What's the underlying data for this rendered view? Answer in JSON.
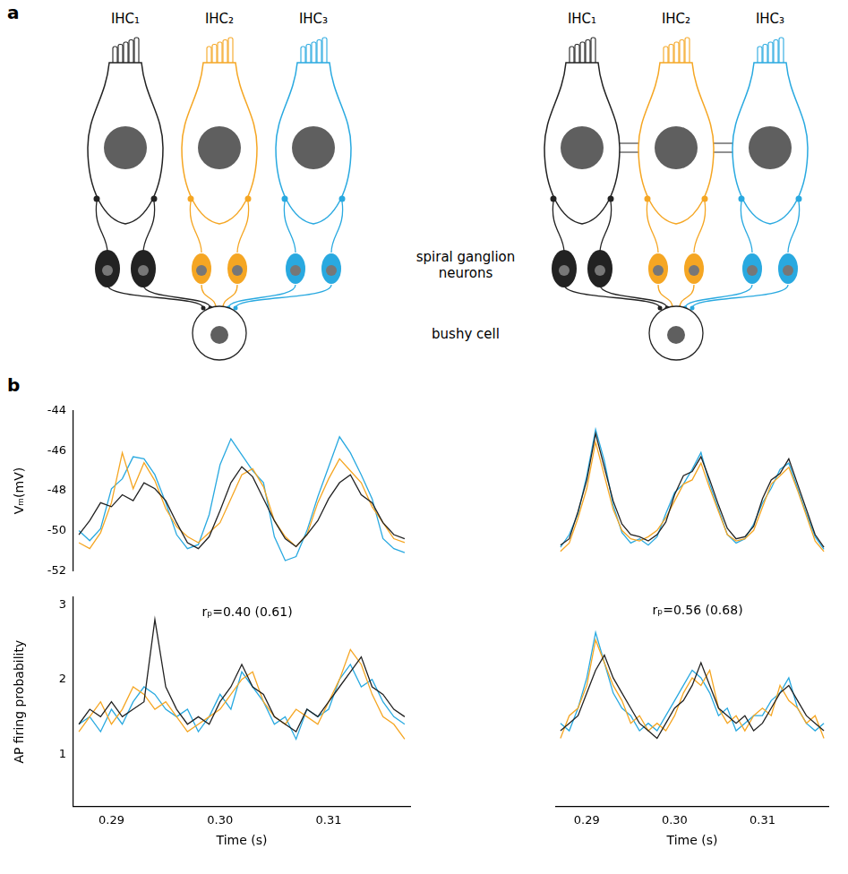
{
  "diagram": {
    "letter": "a",
    "cells": [
      "IHC₁",
      "IHC₂",
      "IHC₃"
    ],
    "colors": [
      "#222222",
      "#f5a623",
      "#29a9e0"
    ],
    "groups": [
      {
        "gap_junctions": false
      },
      {
        "gap_junctions": true
      }
    ],
    "neuron_label": [
      "spiral ganglion",
      "neurons"
    ],
    "target_label": "bushy cell"
  },
  "chart_letter": "b",
  "chart_data": [
    {
      "type": "line",
      "tick_labels": "y",
      "grid": false,
      "y_label": "Vₘ(mV)",
      "x": [
        0.287,
        0.288,
        0.289,
        0.29,
        0.291,
        0.292,
        0.293,
        0.294,
        0.295,
        0.296,
        0.297,
        0.298,
        0.299,
        0.3,
        0.301,
        0.302,
        0.303,
        0.304,
        0.305,
        0.306,
        0.307,
        0.308,
        0.309,
        0.31,
        0.311,
        0.312,
        0.313,
        0.314,
        0.315,
        0.316,
        0.317
      ],
      "xlim": [
        0.2865,
        0.3175
      ],
      "ylim": [
        -52,
        -44
      ],
      "yticks": [
        -44,
        -46,
        -48,
        -50,
        -52
      ],
      "series": [
        {
          "color": "#222222",
          "values": [
            -50.2,
            -49.5,
            -48.6,
            -48.8,
            -48.2,
            -48.5,
            -47.6,
            -47.9,
            -48.5,
            -49.6,
            -50.6,
            -50.9,
            -50.3,
            -49.0,
            -47.6,
            -46.8,
            -47.3,
            -48.4,
            -49.5,
            -50.4,
            -50.8,
            -50.2,
            -49.5,
            -48.4,
            -47.6,
            -47.2,
            -48.2,
            -48.6,
            -49.6,
            -50.2,
            -50.4
          ]
        },
        {
          "color": "#f5a623",
          "values": [
            -50.6,
            -50.9,
            -50.1,
            -48.6,
            -46.1,
            -47.9,
            -46.6,
            -47.5,
            -48.9,
            -49.8,
            -50.3,
            -50.6,
            -50.1,
            -49.6,
            -48.4,
            -47.2,
            -46.9,
            -47.8,
            -49.5,
            -50.3,
            -50.8,
            -50.2,
            -48.6,
            -47.4,
            -46.4,
            -47.0,
            -47.6,
            -48.8,
            -49.6,
            -50.4,
            -50.6
          ]
        },
        {
          "color": "#29a9e0",
          "values": [
            -50.0,
            -50.5,
            -49.9,
            -47.9,
            -47.4,
            -46.3,
            -46.4,
            -47.2,
            -48.6,
            -50.2,
            -50.9,
            -50.7,
            -49.2,
            -46.7,
            -45.4,
            -46.2,
            -47.0,
            -47.6,
            -50.3,
            -51.5,
            -51.3,
            -50.0,
            -48.3,
            -46.8,
            -45.3,
            -46.1,
            -47.2,
            -48.4,
            -50.4,
            -50.9,
            -51.1
          ]
        }
      ]
    },
    {
      "type": "line",
      "tick_labels": false,
      "grid": false,
      "x": [
        0.287,
        0.288,
        0.289,
        0.29,
        0.291,
        0.292,
        0.293,
        0.294,
        0.295,
        0.296,
        0.297,
        0.298,
        0.299,
        0.3,
        0.301,
        0.302,
        0.303,
        0.304,
        0.305,
        0.306,
        0.307,
        0.308,
        0.309,
        0.31,
        0.311,
        0.312,
        0.313,
        0.314,
        0.315,
        0.316,
        0.317
      ],
      "xlim": [
        0.2865,
        0.3175
      ],
      "ylim": [
        -52,
        -44
      ],
      "series": [
        {
          "color": "#222222",
          "values": [
            -50.5,
            -50.2,
            -48.9,
            -47.4,
            -45.2,
            -46.8,
            -48.4,
            -49.5,
            -50.0,
            -50.1,
            -50.3,
            -50.0,
            -49.4,
            -48.1,
            -47.2,
            -47.0,
            -46.3,
            -47.4,
            -48.6,
            -49.7,
            -50.2,
            -50.1,
            -49.6,
            -48.3,
            -47.4,
            -47.1,
            -46.4,
            -47.6,
            -48.8,
            -50.0,
            -50.6
          ]
        },
        {
          "color": "#f5a623",
          "values": [
            -50.8,
            -50.4,
            -49.2,
            -47.8,
            -45.6,
            -47.2,
            -48.8,
            -49.8,
            -50.2,
            -50.3,
            -50.1,
            -49.8,
            -49.2,
            -48.4,
            -47.6,
            -47.4,
            -46.6,
            -47.8,
            -48.9,
            -50.0,
            -50.3,
            -50.2,
            -49.8,
            -48.7,
            -47.6,
            -47.2,
            -46.8,
            -47.9,
            -49.1,
            -50.3,
            -50.8
          ]
        },
        {
          "color": "#29a9e0",
          "values": [
            -50.6,
            -50.0,
            -49.0,
            -47.2,
            -45.0,
            -46.5,
            -48.6,
            -49.9,
            -50.4,
            -50.2,
            -50.5,
            -50.1,
            -49.0,
            -48.0,
            -47.6,
            -46.9,
            -46.1,
            -47.6,
            -48.8,
            -50.0,
            -50.4,
            -50.2,
            -49.5,
            -48.5,
            -47.8,
            -46.9,
            -46.6,
            -47.8,
            -49.0,
            -50.1,
            -50.7
          ]
        }
      ]
    },
    {
      "type": "line",
      "grid": false,
      "y_label": "AP firing probability",
      "x_label": "Time (s)",
      "annotation": "rₚ=0.40 (0.61)",
      "x": [
        0.287,
        0.288,
        0.289,
        0.29,
        0.291,
        0.292,
        0.293,
        0.294,
        0.295,
        0.296,
        0.297,
        0.298,
        0.299,
        0.3,
        0.301,
        0.302,
        0.303,
        0.304,
        0.305,
        0.306,
        0.307,
        0.308,
        0.309,
        0.31,
        0.311,
        0.312,
        0.313,
        0.314,
        0.315,
        0.316,
        0.317
      ],
      "xlim": [
        0.2865,
        0.3175
      ],
      "xticks": [
        0.29,
        {
          "value": 0.3,
          "label": "0.30"
        },
        0.31
      ],
      "ylim": [
        0.3,
        3.1
      ],
      "yticks": [
        1,
        2,
        3
      ],
      "series": [
        {
          "color": "#222222",
          "values": [
            1.4,
            1.6,
            1.5,
            1.7,
            1.5,
            1.6,
            1.7,
            2.8,
            1.9,
            1.6,
            1.4,
            1.5,
            1.4,
            1.7,
            1.9,
            2.2,
            1.9,
            1.8,
            1.5,
            1.4,
            1.3,
            1.6,
            1.5,
            1.7,
            1.9,
            2.1,
            2.3,
            1.9,
            1.8,
            1.6,
            1.5
          ]
        },
        {
          "color": "#f5a623",
          "values": [
            1.3,
            1.5,
            1.7,
            1.4,
            1.6,
            1.9,
            1.8,
            1.6,
            1.7,
            1.5,
            1.3,
            1.4,
            1.5,
            1.6,
            1.8,
            2.0,
            2.1,
            1.7,
            1.5,
            1.4,
            1.6,
            1.5,
            1.4,
            1.7,
            2.0,
            2.4,
            2.2,
            1.8,
            1.5,
            1.4,
            1.2
          ]
        },
        {
          "color": "#29a9e0",
          "values": [
            1.4,
            1.5,
            1.3,
            1.6,
            1.4,
            1.7,
            1.9,
            1.8,
            1.6,
            1.5,
            1.6,
            1.3,
            1.5,
            1.8,
            1.6,
            2.1,
            1.9,
            1.7,
            1.4,
            1.5,
            1.2,
            1.6,
            1.5,
            1.6,
            2.0,
            2.2,
            1.9,
            2.0,
            1.7,
            1.5,
            1.4
          ]
        }
      ]
    },
    {
      "type": "line",
      "tick_labels": "x",
      "grid": false,
      "x_label": "Time (s)",
      "annotation": "rₚ=0.56 (0.68)",
      "x": [
        0.287,
        0.288,
        0.289,
        0.29,
        0.291,
        0.292,
        0.293,
        0.294,
        0.295,
        0.296,
        0.297,
        0.298,
        0.299,
        0.3,
        0.301,
        0.302,
        0.303,
        0.304,
        0.305,
        0.306,
        0.307,
        0.308,
        0.309,
        0.31,
        0.311,
        0.312,
        0.313,
        0.314,
        0.315,
        0.316,
        0.317
      ],
      "xlim": [
        0.2865,
        0.3175
      ],
      "xticks": [
        0.29,
        {
          "value": 0.3,
          "label": "0.30"
        },
        0.31
      ],
      "ylim": [
        0.3,
        3.1
      ],
      "series": [
        {
          "color": "#222222",
          "values": [
            1.3,
            1.4,
            1.5,
            1.8,
            2.1,
            2.3,
            2.0,
            1.8,
            1.6,
            1.4,
            1.3,
            1.2,
            1.4,
            1.6,
            1.7,
            1.9,
            2.2,
            1.9,
            1.6,
            1.5,
            1.4,
            1.5,
            1.3,
            1.4,
            1.6,
            1.8,
            1.9,
            1.7,
            1.5,
            1.4,
            1.3
          ]
        },
        {
          "color": "#f5a623",
          "values": [
            1.2,
            1.5,
            1.6,
            1.9,
            2.5,
            2.2,
            1.9,
            1.7,
            1.4,
            1.5,
            1.3,
            1.4,
            1.3,
            1.5,
            1.8,
            2.0,
            1.9,
            2.1,
            1.6,
            1.4,
            1.5,
            1.3,
            1.5,
            1.6,
            1.5,
            1.9,
            1.7,
            1.6,
            1.4,
            1.5,
            1.2
          ]
        },
        {
          "color": "#29a9e0",
          "values": [
            1.4,
            1.3,
            1.6,
            2.0,
            2.6,
            2.2,
            1.8,
            1.6,
            1.5,
            1.3,
            1.4,
            1.3,
            1.5,
            1.7,
            1.9,
            2.1,
            2.0,
            1.8,
            1.5,
            1.6,
            1.3,
            1.4,
            1.5,
            1.5,
            1.7,
            1.8,
            2.0,
            1.6,
            1.4,
            1.3,
            1.4
          ]
        }
      ]
    }
  ]
}
